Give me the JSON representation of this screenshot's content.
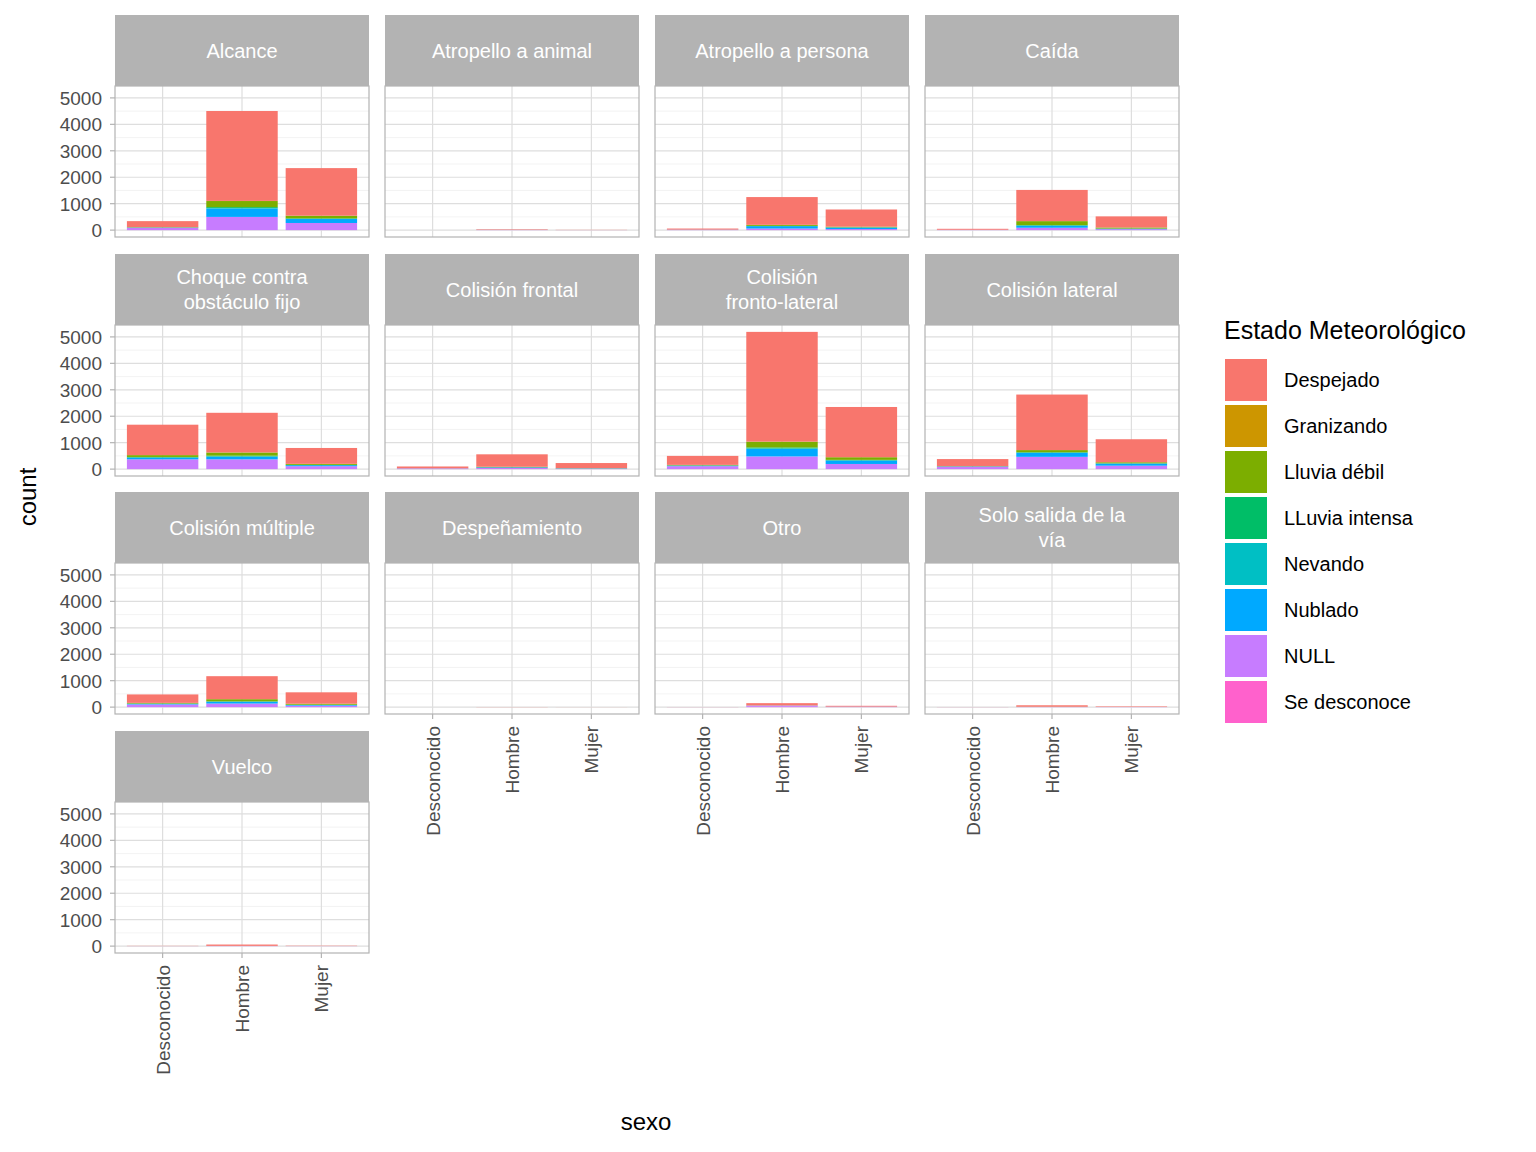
{
  "chart_data": {
    "type": "bar",
    "stacked": true,
    "grid": true,
    "legend": "right",
    "x_label": "sexo",
    "y_label": "count",
    "legend_title": "Estado Meteorológico",
    "categories": [
      "Desconocido",
      "Hombre",
      "Mujer"
    ],
    "ylim": [
      -260,
      5450
    ],
    "yticks": [
      0,
      1000,
      2000,
      3000,
      4000,
      5000
    ],
    "series": [
      {
        "name": "Despejado",
        "color": "#F8766D"
      },
      {
        "name": "Granizando",
        "color": "#CD9600"
      },
      {
        "name": "Lluvia débil",
        "color": "#7CAE00"
      },
      {
        "name": "LLuvia intensa",
        "color": "#00BE67"
      },
      {
        "name": "Nevando",
        "color": "#00BFC4"
      },
      {
        "name": "Nublado",
        "color": "#00A9FF"
      },
      {
        "name": "NULL",
        "color": "#C77CFF"
      },
      {
        "name": "Se desconoce",
        "color": "#FF61CC"
      }
    ],
    "facets": [
      {
        "title": "Alcance",
        "values": [
          [
            230,
            3400,
            1800
          ],
          [
            0,
            5,
            0
          ],
          [
            10,
            230,
            100
          ],
          [
            5,
            40,
            20
          ],
          [
            0,
            10,
            5
          ],
          [
            15,
            320,
            150
          ],
          [
            80,
            500,
            270
          ],
          [
            0,
            0,
            0
          ]
        ]
      },
      {
        "title": "Atropello a animal",
        "values": [
          [
            0,
            20,
            8
          ],
          [
            0,
            0,
            0
          ],
          [
            0,
            0,
            0
          ],
          [
            0,
            0,
            0
          ],
          [
            0,
            0,
            0
          ],
          [
            0,
            3,
            0
          ],
          [
            0,
            5,
            2
          ],
          [
            0,
            2,
            0
          ]
        ]
      },
      {
        "title": "Atropello a persona",
        "values": [
          [
            40,
            1050,
            650
          ],
          [
            0,
            0,
            0
          ],
          [
            0,
            40,
            25
          ],
          [
            0,
            10,
            5
          ],
          [
            0,
            0,
            0
          ],
          [
            5,
            90,
            60
          ],
          [
            15,
            60,
            40
          ],
          [
            0,
            0,
            0
          ]
        ]
      },
      {
        "title": "Caída",
        "values": [
          [
            35,
            1180,
            420
          ],
          [
            0,
            0,
            0
          ],
          [
            0,
            150,
            40
          ],
          [
            0,
            20,
            5
          ],
          [
            0,
            0,
            0
          ],
          [
            0,
            80,
            20
          ],
          [
            15,
            90,
            35
          ],
          [
            0,
            0,
            0
          ]
        ]
      },
      {
        "title": "Choque contra\nobstáculo fijo",
        "values": [
          [
            1150,
            1500,
            600
          ],
          [
            0,
            0,
            0
          ],
          [
            70,
            120,
            40
          ],
          [
            20,
            30,
            10
          ],
          [
            10,
            10,
            0
          ],
          [
            60,
            100,
            40
          ],
          [
            370,
            370,
            110
          ],
          [
            0,
            0,
            0
          ]
        ]
      },
      {
        "title": "Colisión frontal",
        "values": [
          [
            70,
            470,
            190
          ],
          [
            0,
            0,
            0
          ],
          [
            0,
            20,
            8
          ],
          [
            0,
            0,
            0
          ],
          [
            0,
            0,
            0
          ],
          [
            5,
            25,
            12
          ],
          [
            25,
            45,
            20
          ],
          [
            0,
            0,
            0
          ]
        ]
      },
      {
        "title": "Colisión\nfronto-lateral",
        "values": [
          [
            340,
            4150,
            1900
          ],
          [
            0,
            0,
            0
          ],
          [
            20,
            220,
            100
          ],
          [
            5,
            40,
            20
          ],
          [
            0,
            10,
            5
          ],
          [
            25,
            290,
            130
          ],
          [
            110,
            480,
            195
          ],
          [
            0,
            0,
            0
          ]
        ]
      },
      {
        "title": "Colisión lateral",
        "values": [
          [
            270,
            2100,
            870
          ],
          [
            0,
            0,
            0
          ],
          [
            10,
            80,
            40
          ],
          [
            0,
            20,
            10
          ],
          [
            0,
            5,
            0
          ],
          [
            20,
            150,
            80
          ],
          [
            80,
            465,
            130
          ],
          [
            0,
            0,
            0
          ]
        ]
      },
      {
        "title": "Colisión múltiple",
        "values": [
          [
            320,
            870,
            430
          ],
          [
            0,
            0,
            0
          ],
          [
            25,
            80,
            40
          ],
          [
            5,
            15,
            5
          ],
          [
            0,
            0,
            0
          ],
          [
            30,
            70,
            30
          ],
          [
            100,
            135,
            55
          ],
          [
            0,
            0,
            0
          ]
        ]
      },
      {
        "title": "Despeñamiento",
        "values": [
          [
            0,
            5,
            2
          ],
          [
            0,
            0,
            0
          ],
          [
            0,
            0,
            0
          ],
          [
            0,
            0,
            0
          ],
          [
            0,
            0,
            0
          ],
          [
            0,
            0,
            0
          ],
          [
            0,
            0,
            0
          ],
          [
            0,
            0,
            0
          ]
        ]
      },
      {
        "title": "Otro",
        "values": [
          [
            3,
            90,
            30
          ],
          [
            0,
            0,
            0
          ],
          [
            0,
            0,
            0
          ],
          [
            0,
            0,
            0
          ],
          [
            0,
            0,
            0
          ],
          [
            0,
            10,
            3
          ],
          [
            2,
            40,
            15
          ],
          [
            0,
            10,
            2
          ]
        ]
      },
      {
        "title": "Solo salida de la\nvía",
        "values": [
          [
            3,
            55,
            20
          ],
          [
            0,
            0,
            0
          ],
          [
            0,
            5,
            0
          ],
          [
            0,
            0,
            0
          ],
          [
            0,
            0,
            0
          ],
          [
            0,
            0,
            0
          ],
          [
            2,
            10,
            5
          ],
          [
            0,
            0,
            0
          ]
        ]
      },
      {
        "title": "Vuelco",
        "values": [
          [
            8,
            50,
            12
          ],
          [
            0,
            0,
            0
          ],
          [
            0,
            0,
            0
          ],
          [
            0,
            0,
            0
          ],
          [
            0,
            0,
            0
          ],
          [
            0,
            0,
            0
          ],
          [
            2,
            10,
            3
          ],
          [
            0,
            0,
            0
          ]
        ]
      }
    ]
  }
}
